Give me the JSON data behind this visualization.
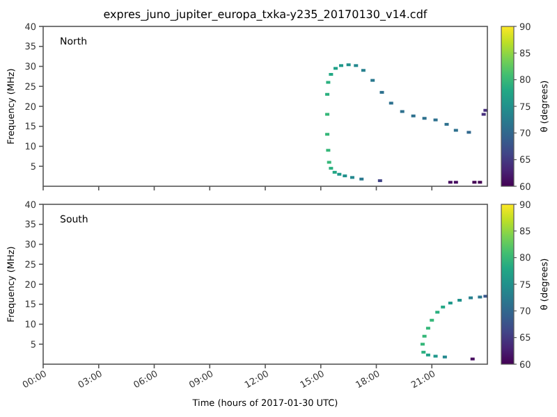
{
  "chart_data": [
    {
      "type": "scatter",
      "title": "expres_juno_jupiter_europa_txka-y235_20170130_v14.cdf",
      "ylabel": "Frequency (MHz)",
      "clabel": "θ (degrees)",
      "annotations": [
        "North"
      ],
      "marker": "square",
      "grid": false,
      "tick_labels": "y",
      "xlim": [
        0,
        24
      ],
      "xticks": [
        {
          "value": 0,
          "label": null
        },
        {
          "value": 3,
          "label": null
        },
        {
          "value": 6,
          "label": null
        },
        {
          "value": 9,
          "label": null
        },
        {
          "value": 12,
          "label": null
        },
        {
          "value": 15,
          "label": null
        },
        {
          "value": 18,
          "label": null
        },
        {
          "value": 21,
          "label": null
        }
      ],
      "ylim": [
        0,
        40
      ],
      "yticks": [
        5,
        10,
        15,
        20,
        25,
        30,
        35,
        40
      ],
      "clim": [
        60,
        90
      ],
      "cticks": [
        60,
        65,
        70,
        75,
        80,
        85,
        90
      ],
      "series": [
        {
          "x": [
            15.35,
            15.35,
            15.35,
            15.4,
            15.45,
            15.55,
            15.75,
            16.0,
            16.3,
            16.7,
            17.2,
            18.2,
            22.0,
            22.3,
            23.3,
            23.6,
            15.4,
            15.55,
            15.8,
            16.1,
            16.5,
            16.9,
            17.3,
            17.8,
            18.3,
            18.8,
            19.4,
            20.0,
            20.6,
            21.2,
            21.8,
            22.3,
            23.0,
            23.8,
            23.9
          ],
          "values": [
            23,
            18,
            13,
            9,
            6,
            4.5,
            3.5,
            3.0,
            2.6,
            2.2,
            1.8,
            1.4,
            1.0,
            1.0,
            1.0,
            1.0,
            26,
            28,
            29.5,
            30.2,
            30.4,
            30.2,
            29,
            26.5,
            23.5,
            20.8,
            18.7,
            17.6,
            17.0,
            16.6,
            15.5,
            14.0,
            13.5,
            18,
            19
          ],
          "cvalues": [
            79,
            80,
            80,
            80,
            80,
            79,
            78,
            76,
            75,
            74,
            72,
            66,
            61,
            61,
            60,
            60,
            79,
            78,
            77,
            76,
            75,
            74,
            73,
            72,
            71,
            71,
            71,
            71,
            71,
            71,
            71,
            71,
            70,
            64,
            64
          ]
        }
      ]
    },
    {
      "type": "scatter",
      "xlabel": "Time (hours of 2017-01-30 UTC)",
      "ylabel": "Frequency (MHz)",
      "clabel": "θ (degrees)",
      "annotations": [
        "South"
      ],
      "marker": "square",
      "grid": false,
      "xlim": [
        0,
        24
      ],
      "xticks": [
        {
          "value": 0,
          "label": "00:00"
        },
        {
          "value": 3,
          "label": "03:00"
        },
        {
          "value": 6,
          "label": "06:00"
        },
        {
          "value": 9,
          "label": "09:00"
        },
        {
          "value": 12,
          "label": "12:00"
        },
        {
          "value": 15,
          "label": "15:00"
        },
        {
          "value": 18,
          "label": "18:00"
        },
        {
          "value": 21,
          "label": "21:00"
        }
      ],
      "ylim": [
        0,
        40
      ],
      "yticks": [
        5,
        10,
        15,
        20,
        25,
        30,
        35,
        40
      ],
      "clim": [
        60,
        90
      ],
      "cticks": [
        60,
        65,
        70,
        75,
        80,
        85,
        90
      ],
      "series": [
        {
          "x": [
            20.55,
            20.5,
            20.6,
            20.8,
            21.0,
            21.3,
            21.6,
            22.0,
            22.5,
            23.1,
            23.6,
            23.9,
            20.8,
            21.2,
            21.7,
            23.2
          ],
          "values": [
            3,
            5,
            7,
            9,
            11,
            13,
            14.3,
            15.3,
            16.0,
            16.6,
            16.8,
            17.0,
            2.3,
            2.0,
            1.8,
            1.3
          ],
          "cvalues": [
            79,
            80,
            80,
            80,
            80,
            79,
            78,
            76,
            75,
            73,
            72,
            68,
            77,
            76,
            74,
            61
          ]
        }
      ]
    }
  ]
}
